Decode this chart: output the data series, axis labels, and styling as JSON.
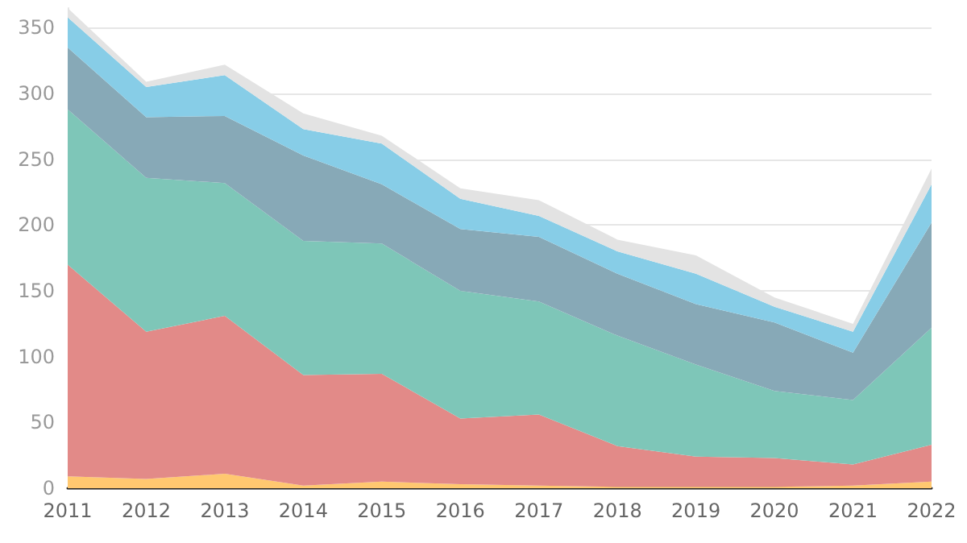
{
  "chart_data": {
    "type": "area",
    "stacked": true,
    "categories": [
      "2011",
      "2012",
      "2013",
      "2014",
      "2015",
      "2016",
      "2017",
      "2018",
      "2019",
      "2020",
      "2021",
      "2022"
    ],
    "series": [
      {
        "color": "#ffc870",
        "values": [
          9,
          7,
          11,
          2,
          5,
          3,
          2,
          1,
          1,
          1,
          2,
          5
        ]
      },
      {
        "color": "#e28a88",
        "values": [
          161,
          112,
          120,
          84,
          82,
          50,
          54,
          31,
          23,
          22,
          16,
          28
        ]
      },
      {
        "color": "#7ec6b8",
        "values": [
          118,
          117,
          101,
          102,
          99,
          97,
          86,
          84,
          70,
          51,
          49,
          89
        ]
      },
      {
        "color": "#87a9b7",
        "values": [
          47,
          46,
          51,
          65,
          45,
          47,
          49,
          47,
          46,
          52,
          36,
          80
        ]
      },
      {
        "color": "#87cde7",
        "values": [
          23,
          23,
          31,
          20,
          31,
          23,
          16,
          17,
          23,
          12,
          16,
          29
        ]
      },
      {
        "color": "#e3e3e3",
        "values": [
          7,
          4,
          8,
          12,
          6,
          8,
          12,
          9,
          14,
          7,
          6,
          12
        ]
      }
    ],
    "ylim": [
      0,
      365
    ],
    "yticks": [
      0,
      50,
      100,
      150,
      200,
      250,
      300,
      350
    ],
    "grid": "y"
  }
}
